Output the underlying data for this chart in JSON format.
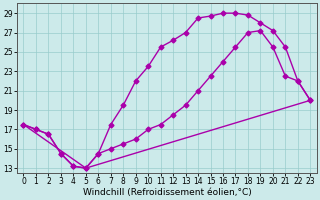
{
  "xlabel": "Windchill (Refroidissement éolien,°C)",
  "xlim": [
    -0.5,
    23.5
  ],
  "ylim": [
    12.5,
    30.0
  ],
  "xticks": [
    0,
    1,
    2,
    3,
    4,
    5,
    6,
    7,
    8,
    9,
    10,
    11,
    12,
    13,
    14,
    15,
    16,
    17,
    18,
    19,
    20,
    21,
    22,
    23
  ],
  "yticks": [
    13,
    15,
    17,
    19,
    21,
    23,
    25,
    27,
    29
  ],
  "bg_color": "#cceaea",
  "line_color": "#aa00aa",
  "marker": "D",
  "markersize": 2.5,
  "linewidth": 1.0,
  "line1": [
    [
      0,
      17.5
    ],
    [
      1,
      17.0
    ],
    [
      2,
      16.5
    ],
    [
      3,
      14.5
    ],
    [
      4,
      13.2
    ],
    [
      5,
      13.0
    ],
    [
      6,
      14.5
    ],
    [
      7,
      17.5
    ],
    [
      8,
      19.5
    ],
    [
      9,
      22.0
    ],
    [
      10,
      23.5
    ],
    [
      11,
      25.5
    ],
    [
      12,
      26.2
    ],
    [
      13,
      27.0
    ],
    [
      14,
      28.5
    ],
    [
      15,
      28.7
    ],
    [
      16,
      29.0
    ],
    [
      17,
      29.0
    ],
    [
      18,
      28.8
    ],
    [
      19,
      28.0
    ],
    [
      20,
      27.2
    ],
    [
      21,
      25.5
    ],
    [
      22,
      22.0
    ],
    [
      23,
      20.0
    ]
  ],
  "line2": [
    [
      0,
      17.5
    ],
    [
      1,
      17.0
    ],
    [
      2,
      16.5
    ],
    [
      3,
      14.5
    ],
    [
      4,
      13.2
    ],
    [
      5,
      13.0
    ],
    [
      6,
      14.5
    ],
    [
      7,
      15.0
    ],
    [
      8,
      15.5
    ],
    [
      9,
      16.0
    ],
    [
      10,
      17.0
    ],
    [
      11,
      17.5
    ],
    [
      12,
      18.5
    ],
    [
      13,
      19.5
    ],
    [
      14,
      21.0
    ],
    [
      15,
      22.5
    ],
    [
      16,
      24.0
    ],
    [
      17,
      25.5
    ],
    [
      18,
      27.0
    ],
    [
      19,
      27.2
    ],
    [
      20,
      25.5
    ],
    [
      21,
      22.5
    ],
    [
      22,
      22.0
    ],
    [
      23,
      20.0
    ]
  ],
  "line3": [
    [
      0,
      17.5
    ],
    [
      5,
      13.0
    ],
    [
      23,
      20.0
    ]
  ],
  "grid_color": "#99cccc",
  "tick_fontsize": 5.5,
  "xlabel_fontsize": 6.5
}
